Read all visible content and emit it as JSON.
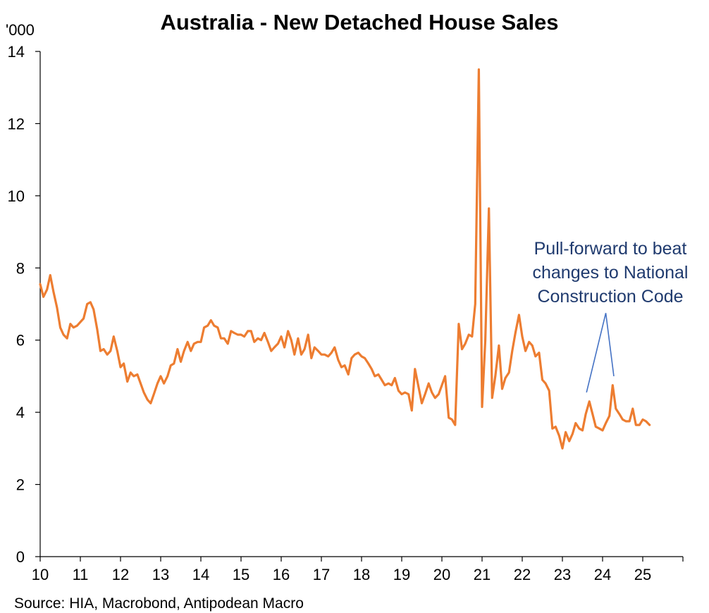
{
  "chart_data": {
    "type": "line",
    "title": "Australia - New Detached House Sales",
    "ylabel": "'000",
    "xlabel": "",
    "source": "Source: HIA, Macrobond, Antipodean Macro",
    "ylim": [
      0,
      14
    ],
    "xlim": [
      10,
      26
    ],
    "y_ticks": [
      "0",
      "2",
      "4",
      "6",
      "8",
      "10",
      "12",
      "14"
    ],
    "x_ticks": [
      "10",
      "11",
      "12",
      "13",
      "14",
      "15",
      "16",
      "17",
      "18",
      "19",
      "20",
      "21",
      "22",
      "23",
      "24",
      "25"
    ],
    "grid": false,
    "legend": "none",
    "series": [
      {
        "color": "#ED7D31",
        "points": [
          [
            10.0,
            7.55
          ],
          [
            10.08,
            7.2
          ],
          [
            10.17,
            7.4
          ],
          [
            10.25,
            7.8
          ],
          [
            10.33,
            7.35
          ],
          [
            10.42,
            6.9
          ],
          [
            10.5,
            6.35
          ],
          [
            10.58,
            6.15
          ],
          [
            10.67,
            6.05
          ],
          [
            10.75,
            6.45
          ],
          [
            10.83,
            6.35
          ],
          [
            10.92,
            6.4
          ],
          [
            11.0,
            6.5
          ],
          [
            11.08,
            6.6
          ],
          [
            11.17,
            7.0
          ],
          [
            11.25,
            7.05
          ],
          [
            11.33,
            6.85
          ],
          [
            11.42,
            6.3
          ],
          [
            11.5,
            5.7
          ],
          [
            11.58,
            5.75
          ],
          [
            11.67,
            5.6
          ],
          [
            11.75,
            5.7
          ],
          [
            11.83,
            6.1
          ],
          [
            11.92,
            5.7
          ],
          [
            12.0,
            5.25
          ],
          [
            12.08,
            5.35
          ],
          [
            12.17,
            4.85
          ],
          [
            12.25,
            5.1
          ],
          [
            12.33,
            5.0
          ],
          [
            12.42,
            5.05
          ],
          [
            12.5,
            4.8
          ],
          [
            12.58,
            4.55
          ],
          [
            12.67,
            4.35
          ],
          [
            12.75,
            4.25
          ],
          [
            12.83,
            4.5
          ],
          [
            12.92,
            4.8
          ],
          [
            13.0,
            5.0
          ],
          [
            13.08,
            4.8
          ],
          [
            13.17,
            5.0
          ],
          [
            13.25,
            5.3
          ],
          [
            13.33,
            5.35
          ],
          [
            13.42,
            5.75
          ],
          [
            13.5,
            5.4
          ],
          [
            13.58,
            5.7
          ],
          [
            13.67,
            5.95
          ],
          [
            13.75,
            5.7
          ],
          [
            13.83,
            5.9
          ],
          [
            13.92,
            5.95
          ],
          [
            14.0,
            5.95
          ],
          [
            14.08,
            6.35
          ],
          [
            14.17,
            6.4
          ],
          [
            14.25,
            6.55
          ],
          [
            14.33,
            6.4
          ],
          [
            14.42,
            6.35
          ],
          [
            14.5,
            6.05
          ],
          [
            14.58,
            6.05
          ],
          [
            14.67,
            5.9
          ],
          [
            14.75,
            6.25
          ],
          [
            14.83,
            6.2
          ],
          [
            14.92,
            6.15
          ],
          [
            15.0,
            6.15
          ],
          [
            15.08,
            6.1
          ],
          [
            15.17,
            6.25
          ],
          [
            15.25,
            6.25
          ],
          [
            15.33,
            5.95
          ],
          [
            15.42,
            6.05
          ],
          [
            15.5,
            6.0
          ],
          [
            15.58,
            6.2
          ],
          [
            15.67,
            5.95
          ],
          [
            15.75,
            5.7
          ],
          [
            15.83,
            5.8
          ],
          [
            15.92,
            5.9
          ],
          [
            16.0,
            6.1
          ],
          [
            16.08,
            5.8
          ],
          [
            16.17,
            6.25
          ],
          [
            16.25,
            6.0
          ],
          [
            16.33,
            5.6
          ],
          [
            16.42,
            6.05
          ],
          [
            16.5,
            5.6
          ],
          [
            16.58,
            5.75
          ],
          [
            16.67,
            6.15
          ],
          [
            16.75,
            5.5
          ],
          [
            16.83,
            5.8
          ],
          [
            16.92,
            5.7
          ],
          [
            17.0,
            5.6
          ],
          [
            17.08,
            5.6
          ],
          [
            17.17,
            5.55
          ],
          [
            17.25,
            5.65
          ],
          [
            17.33,
            5.8
          ],
          [
            17.42,
            5.45
          ],
          [
            17.5,
            5.25
          ],
          [
            17.58,
            5.3
          ],
          [
            17.67,
            5.05
          ],
          [
            17.75,
            5.5
          ],
          [
            17.83,
            5.6
          ],
          [
            17.92,
            5.65
          ],
          [
            18.0,
            5.55
          ],
          [
            18.08,
            5.5
          ],
          [
            18.17,
            5.35
          ],
          [
            18.25,
            5.2
          ],
          [
            18.33,
            5.0
          ],
          [
            18.42,
            5.05
          ],
          [
            18.5,
            4.9
          ],
          [
            18.58,
            4.75
          ],
          [
            18.67,
            4.8
          ],
          [
            18.75,
            4.75
          ],
          [
            18.83,
            4.95
          ],
          [
            18.92,
            4.6
          ],
          [
            19.0,
            4.5
          ],
          [
            19.08,
            4.55
          ],
          [
            19.17,
            4.5
          ],
          [
            19.25,
            4.05
          ],
          [
            19.33,
            5.2
          ],
          [
            19.42,
            4.7
          ],
          [
            19.5,
            4.25
          ],
          [
            19.58,
            4.5
          ],
          [
            19.67,
            4.8
          ],
          [
            19.75,
            4.55
          ],
          [
            19.83,
            4.4
          ],
          [
            19.92,
            4.5
          ],
          [
            20.0,
            4.75
          ],
          [
            20.08,
            5.0
          ],
          [
            20.17,
            3.85
          ],
          [
            20.25,
            3.8
          ],
          [
            20.33,
            3.65
          ],
          [
            20.42,
            6.45
          ],
          [
            20.5,
            5.75
          ],
          [
            20.58,
            5.9
          ],
          [
            20.67,
            6.15
          ],
          [
            20.75,
            6.1
          ],
          [
            20.83,
            7.0
          ],
          [
            20.92,
            13.5
          ],
          [
            21.0,
            4.15
          ],
          [
            21.08,
            6.0
          ],
          [
            21.17,
            9.65
          ],
          [
            21.25,
            4.4
          ],
          [
            21.33,
            5.0
          ],
          [
            21.42,
            5.85
          ],
          [
            21.5,
            4.65
          ],
          [
            21.58,
            4.95
          ],
          [
            21.67,
            5.1
          ],
          [
            21.75,
            5.7
          ],
          [
            21.83,
            6.2
          ],
          [
            21.92,
            6.7
          ],
          [
            22.0,
            6.1
          ],
          [
            22.08,
            5.7
          ],
          [
            22.17,
            5.95
          ],
          [
            22.25,
            5.85
          ],
          [
            22.33,
            5.55
          ],
          [
            22.42,
            5.65
          ],
          [
            22.5,
            4.9
          ],
          [
            22.58,
            4.8
          ],
          [
            22.67,
            4.6
          ],
          [
            22.75,
            3.55
          ],
          [
            22.83,
            3.6
          ],
          [
            22.92,
            3.35
          ],
          [
            23.0,
            3.0
          ],
          [
            23.08,
            3.45
          ],
          [
            23.17,
            3.2
          ],
          [
            23.25,
            3.4
          ],
          [
            23.33,
            3.7
          ],
          [
            23.42,
            3.55
          ],
          [
            23.5,
            3.5
          ],
          [
            23.58,
            3.95
          ],
          [
            23.67,
            4.3
          ],
          [
            23.75,
            3.95
          ],
          [
            23.83,
            3.6
          ],
          [
            23.92,
            3.55
          ],
          [
            24.0,
            3.5
          ],
          [
            24.08,
            3.7
          ],
          [
            24.17,
            3.9
          ],
          [
            24.25,
            4.75
          ],
          [
            24.33,
            4.1
          ],
          [
            24.42,
            3.95
          ],
          [
            24.5,
            3.8
          ],
          [
            24.58,
            3.75
          ],
          [
            24.67,
            3.75
          ],
          [
            24.75,
            4.1
          ],
          [
            24.83,
            3.65
          ],
          [
            24.92,
            3.65
          ],
          [
            25.0,
            3.8
          ],
          [
            25.08,
            3.75
          ],
          [
            25.17,
            3.65
          ]
        ]
      }
    ],
    "annotation": {
      "lines": [
        "Pull-forward to beat",
        "changes to National",
        "Construction Code"
      ],
      "color": "#1F3A6E",
      "arrow_color": "#4472C4",
      "arrow_apex": [
        24.08,
        6.75
      ],
      "arrow_targets": [
        [
          23.6,
          4.55
        ],
        [
          24.28,
          5.0
        ]
      ]
    }
  }
}
